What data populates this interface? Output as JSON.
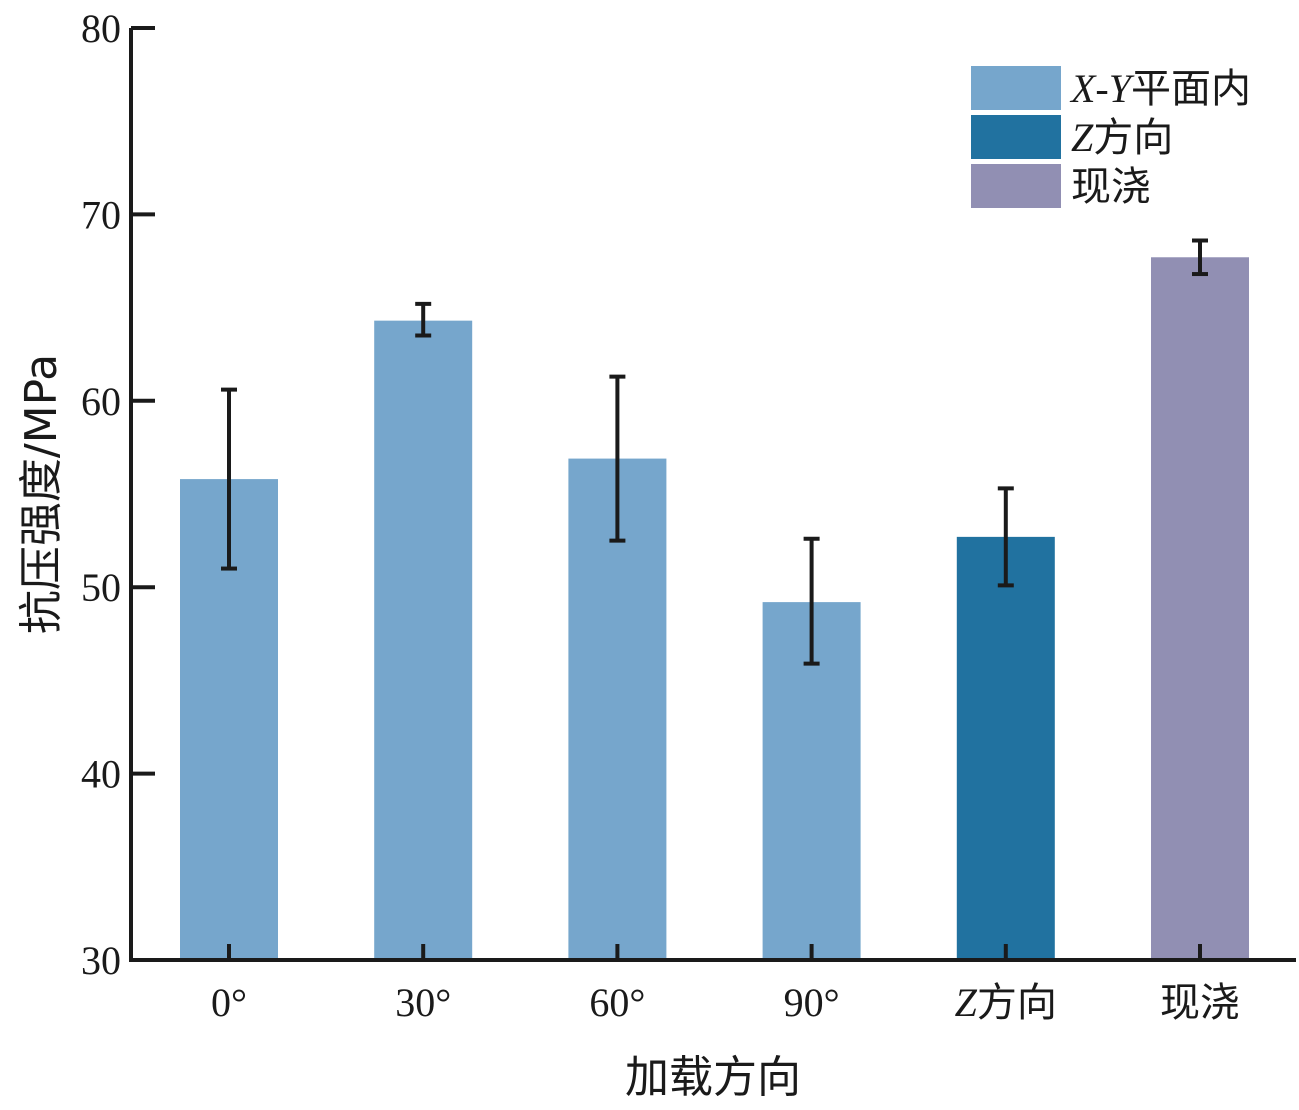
{
  "chart_data": {
    "type": "bar",
    "categories": [
      "0°",
      "30°",
      "60°",
      "90°",
      "Z方向",
      "现浇"
    ],
    "values": [
      55.8,
      64.3,
      56.9,
      49.2,
      52.7,
      67.7
    ],
    "errors": [
      [
        51.0,
        60.6
      ],
      [
        63.5,
        65.2
      ],
      [
        52.5,
        61.3
      ],
      [
        45.9,
        52.6
      ],
      [
        50.1,
        55.3
      ],
      [
        66.8,
        68.6
      ]
    ],
    "groups": [
      "xy",
      "xy",
      "xy",
      "xy",
      "z",
      "cast"
    ],
    "title": "",
    "xlabel": "加载方向",
    "ylabel": "抗压强度/MPa",
    "ylim": [
      30,
      80
    ],
    "yticks": [
      30,
      40,
      50,
      60,
      70,
      80
    ],
    "grid": false,
    "legend_position": "top-right",
    "legend": [
      {
        "key": "xy",
        "label": "X-Y平面内",
        "color": "#76a6cc"
      },
      {
        "key": "z",
        "label": "Z方向",
        "color": "#2172a0"
      },
      {
        "key": "cast",
        "label": "现浇",
        "color": "#918fb3"
      }
    ]
  }
}
